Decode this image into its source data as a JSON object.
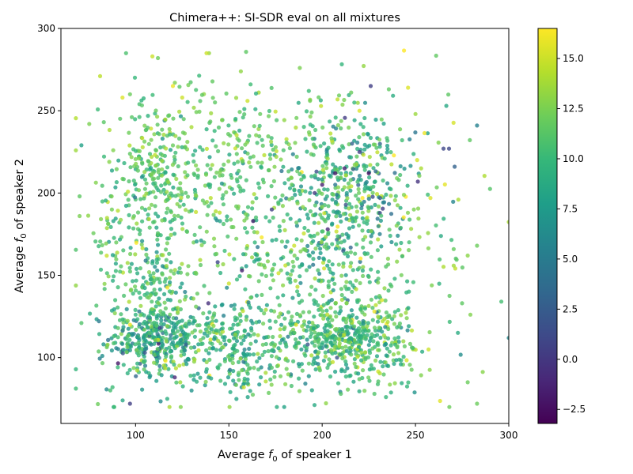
{
  "chart_data": {
    "type": "scatter",
    "title": "Chimera++: SI-SDR eval on all mixtures",
    "xlabel": {
      "prefix": "Average ",
      "symbol": "f",
      "subscript": "0",
      "suffix": " of speaker 1"
    },
    "ylabel": {
      "prefix": "Average ",
      "symbol": "f",
      "subscript": "0",
      "suffix": " of speaker 2"
    },
    "xlim": [
      60,
      300
    ],
    "ylim": [
      60,
      300
    ],
    "xticks": [
      "100",
      "150",
      "200",
      "250",
      "300"
    ],
    "yticks": [
      "100",
      "150",
      "200",
      "250",
      "300"
    ],
    "grid": false,
    "colorbar": {
      "label": "",
      "colormap": "viridis",
      "range": [
        -3.2,
        16.5
      ],
      "ticks": [
        "−2.5",
        "0.0",
        "2.5",
        "5.0",
        "7.5",
        "10.0",
        "12.5",
        "15.0"
      ]
    },
    "marker_alpha": 0.8,
    "point_count_note": "approximately 2500 points; clusters near x≈100-115, x≈190-210, x≈215-235 and y≈105-120, y≈170-230",
    "clusters": [
      {
        "x_center": 110,
        "y_center": 112,
        "x_spread": 12,
        "y_spread": 10,
        "sdr_mean": 8.5,
        "sdr_sd": 2.5,
        "n": 300
      },
      {
        "x_center": 110,
        "y_center": 210,
        "x_spread": 10,
        "y_spread": 25,
        "sdr_mean": 11.0,
        "sdr_sd": 1.6,
        "n": 230
      },
      {
        "x_center": 110,
        "y_center": 145,
        "x_spread": 8,
        "y_spread": 15,
        "sdr_mean": 10.0,
        "sdr_sd": 2.0,
        "n": 110
      },
      {
        "x_center": 205,
        "y_center": 112,
        "x_spread": 15,
        "y_spread": 10,
        "sdr_mean": 10.5,
        "sdr_sd": 2.0,
        "n": 280
      },
      {
        "x_center": 205,
        "y_center": 200,
        "x_spread": 12,
        "y_spread": 22,
        "sdr_mean": 9.0,
        "sdr_sd": 3.0,
        "n": 200
      },
      {
        "x_center": 228,
        "y_center": 112,
        "x_spread": 12,
        "y_spread": 12,
        "sdr_mean": 10.5,
        "sdr_sd": 2.2,
        "n": 160
      },
      {
        "x_center": 228,
        "y_center": 205,
        "x_spread": 12,
        "y_spread": 22,
        "sdr_mean": 9.0,
        "sdr_sd": 3.2,
        "n": 140
      },
      {
        "x_center": 150,
        "y_center": 112,
        "x_spread": 18,
        "y_spread": 12,
        "sdr_mean": 9.5,
        "sdr_sd": 2.3,
        "n": 220
      },
      {
        "x_center": 150,
        "y_center": 210,
        "x_spread": 22,
        "y_spread": 25,
        "sdr_mean": 11.2,
        "sdr_sd": 1.6,
        "n": 180
      },
      {
        "x_center": 165,
        "y_center": 160,
        "x_spread": 40,
        "y_spread": 35,
        "sdr_mean": 11.0,
        "sdr_sd": 1.8,
        "n": 260
      },
      {
        "x_center": 175,
        "y_center": 240,
        "x_spread": 40,
        "y_spread": 15,
        "sdr_mean": 11.5,
        "sdr_sd": 1.6,
        "n": 120
      },
      {
        "x_center": 205,
        "y_center": 150,
        "x_spread": 25,
        "y_spread": 25,
        "sdr_mean": 10.5,
        "sdr_sd": 2.2,
        "n": 200
      },
      {
        "x_center": 170,
        "y_center": 90,
        "x_spread": 40,
        "y_spread": 6,
        "sdr_mean": 9.5,
        "sdr_sd": 2.5,
        "n": 110
      },
      {
        "x_center": 88,
        "y_center": 160,
        "x_spread": 6,
        "y_spread": 45,
        "sdr_mean": 10.5,
        "sdr_sd": 2.0,
        "n": 80
      },
      {
        "x_center": 255,
        "y_center": 165,
        "x_spread": 18,
        "y_spread": 50,
        "sdr_mean": 11.5,
        "sdr_sd": 2.0,
        "n": 60
      }
    ],
    "outliers": [
      {
        "x": 300,
        "y": 112,
        "v": 6.0
      },
      {
        "x": 296,
        "y": 134,
        "v": 10.5
      },
      {
        "x": 283,
        "y": 241,
        "v": 5.5
      },
      {
        "x": 283,
        "y": 72,
        "v": 12.0
      },
      {
        "x": 283,
        "y": 168,
        "v": 12.0
      },
      {
        "x": 278,
        "y": 162,
        "v": 13.0
      },
      {
        "x": 278,
        "y": 85,
        "v": 12.0
      },
      {
        "x": 275,
        "y": 133,
        "v": 11.5
      },
      {
        "x": 273,
        "y": 196,
        "v": 14.0
      },
      {
        "x": 271,
        "y": 216,
        "v": 3.0
      },
      {
        "x": 268,
        "y": 227,
        "v": 1.0
      },
      {
        "x": 265,
        "y": 227,
        "v": 1.0
      },
      {
        "x": 258,
        "y": 197,
        "v": 15.5
      },
      {
        "x": 257,
        "y": 105,
        "v": 15.0
      },
      {
        "x": 246,
        "y": 264,
        "v": 15.5
      },
      {
        "x": 226,
        "y": 265,
        "v": 0.5
      },
      {
        "x": 109,
        "y": 283,
        "v": 15.0
      },
      {
        "x": 112,
        "y": 282,
        "v": 12.0
      },
      {
        "x": 138,
        "y": 285,
        "v": 15.0
      },
      {
        "x": 188,
        "y": 276,
        "v": 12.5
      },
      {
        "x": 81,
        "y": 271,
        "v": 14.5
      },
      {
        "x": 71,
        "y": 229,
        "v": 8.0
      },
      {
        "x": 70,
        "y": 198,
        "v": 11.5
      },
      {
        "x": 70,
        "y": 186,
        "v": 12.5
      },
      {
        "x": 71,
        "y": 121,
        "v": 11.0
      },
      {
        "x": 97,
        "y": 72,
        "v": 0.5
      },
      {
        "x": 117,
        "y": 75,
        "v": 9.0
      },
      {
        "x": 130,
        "y": 80,
        "v": 7.0
      },
      {
        "x": 158,
        "y": 82,
        "v": 15.0
      },
      {
        "x": 210,
        "y": 78,
        "v": 11.0
      },
      {
        "x": 228,
        "y": 78,
        "v": 11.0
      },
      {
        "x": 212,
        "y": 215,
        "v": -1.5
      },
      {
        "x": 207,
        "y": 212,
        "v": -2.0
      },
      {
        "x": 225,
        "y": 212,
        "v": -2.5
      },
      {
        "x": 200,
        "y": 205,
        "v": -1.5
      },
      {
        "x": 163,
        "y": 183,
        "v": -1.5
      },
      {
        "x": 203,
        "y": 178,
        "v": -1.0
      },
      {
        "x": 139,
        "y": 133,
        "v": -0.5
      },
      {
        "x": 157,
        "y": 153,
        "v": -1.5
      },
      {
        "x": 121,
        "y": 88,
        "v": -1.0
      },
      {
        "x": 196,
        "y": 200,
        "v": 0.0
      },
      {
        "x": 173,
        "y": 190,
        "v": 0.5
      },
      {
        "x": 113,
        "y": 118,
        "v": 1.0
      },
      {
        "x": 105,
        "y": 103,
        "v": 2.0
      },
      {
        "x": 144,
        "y": 158,
        "v": 1.0
      },
      {
        "x": 127,
        "y": 108,
        "v": 3.0
      },
      {
        "x": 231,
        "y": 197,
        "v": 2.5
      },
      {
        "x": 216,
        "y": 230,
        "v": 3.0
      },
      {
        "x": 220,
        "y": 225,
        "v": 0.5
      },
      {
        "x": 208,
        "y": 100,
        "v": 2.0
      },
      {
        "x": 93,
        "y": 258,
        "v": 15.5
      },
      {
        "x": 97,
        "y": 260,
        "v": 12.0
      },
      {
        "x": 120,
        "y": 265,
        "v": 16.0
      },
      {
        "x": 125,
        "y": 258,
        "v": 15.0
      },
      {
        "x": 250,
        "y": 248,
        "v": 13.5
      },
      {
        "x": 253,
        "y": 215,
        "v": 14.0
      },
      {
        "x": 228,
        "y": 128,
        "v": 16.0
      },
      {
        "x": 232,
        "y": 135,
        "v": 15.5
      },
      {
        "x": 97,
        "y": 120,
        "v": 16.0
      },
      {
        "x": 186,
        "y": 120,
        "v": 15.5
      },
      {
        "x": 150,
        "y": 145,
        "v": 15.0
      },
      {
        "x": 185,
        "y": 168,
        "v": 15.0
      },
      {
        "x": 220,
        "y": 250,
        "v": 15.5
      },
      {
        "x": 160,
        "y": 256,
        "v": 15.0
      }
    ]
  }
}
